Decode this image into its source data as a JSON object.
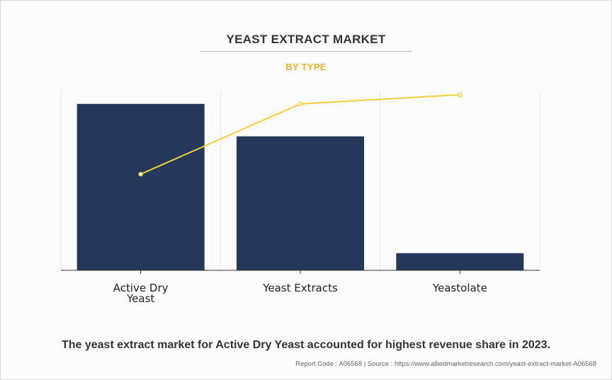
{
  "header": {
    "title": "YEAST EXTRACT MARKET",
    "subtitle": "BY TYPE"
  },
  "chart_data": {
    "type": "bar",
    "title": "YEAST EXTRACT MARKET",
    "subtitle": "BY TYPE",
    "categories": [
      "Active Dry Yeast",
      "Yeast Extracts",
      "Yeastolate"
    ],
    "category_lines": [
      [
        "Active Dry",
        "Yeast"
      ],
      [
        "Yeast Extracts"
      ],
      [
        "Yeastolate"
      ]
    ],
    "series": [
      {
        "type": "bar",
        "values": [
          100,
          80.5,
          10.3
        ],
        "color": "#25375a"
      },
      {
        "type": "line",
        "values": [
          57.8,
          100,
          105.5
        ],
        "color": "#f5cf3b"
      }
    ],
    "xlabel": "",
    "ylabel": "",
    "ylim": [
      0,
      108
    ],
    "grid": true,
    "legend": "none"
  },
  "caption": "The yeast extract market for Active Dry Yeast accounted for highest revenue share in 2023.",
  "footer": "Report Code : A06568  |  Source : https://www.alliedmarketresearch.com/yeast-extract-market-A06568",
  "colors": {
    "bar": "#25375a",
    "line": "#f5cf3b",
    "title": "#333333",
    "subtitle": "#f0b323"
  }
}
